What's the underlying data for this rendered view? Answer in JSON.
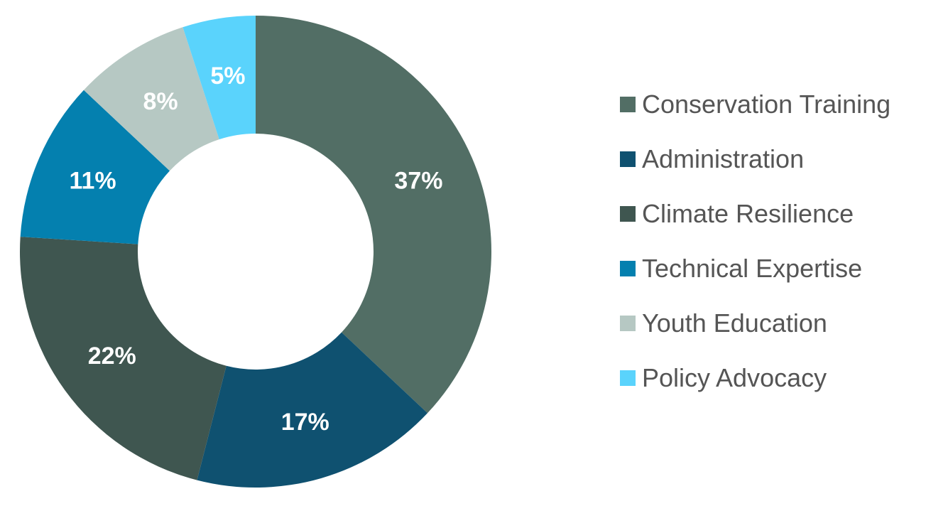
{
  "chart_data": {
    "type": "pie",
    "variant": "donut",
    "title": "",
    "categories": [
      "Conservation Training",
      "Administration",
      "Climate Resilience",
      "Technical Expertise",
      "Youth Education",
      "Policy Advocacy"
    ],
    "values": [
      37,
      17,
      22,
      11,
      8,
      5
    ],
    "value_labels": [
      "37%",
      "17%",
      "22%",
      "11%",
      "8%",
      "5%"
    ],
    "colors": [
      "#526e65",
      "#0f5170",
      "#3f5650",
      "#0480af",
      "#b6c8c3",
      "#5ad3fc"
    ],
    "legend_position": "right"
  }
}
